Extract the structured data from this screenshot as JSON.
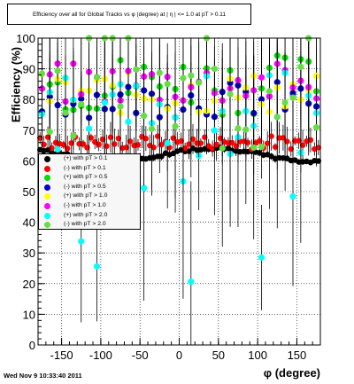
{
  "chart_data": {
    "type": "scatter",
    "title": "Efficiency over all for Global Tracks vs φ (degree) at | η | <= 1.0 at pT > 0.11",
    "xlabel": "φ (degree)",
    "ylabel": "Efficiency (%)",
    "xlim": [
      -180,
      180
    ],
    "ylim": [
      0,
      100
    ],
    "x_ticks": [
      "-150",
      "-100",
      "-50",
      "0",
      "50",
      "100",
      "150"
    ],
    "y_ticks": [
      "0",
      "10",
      "20",
      "30",
      "40",
      "50",
      "60",
      "70",
      "80",
      "90",
      "100"
    ],
    "grid": true,
    "legend_position": "left",
    "series": [
      {
        "name": "(+) with pT > 0.1",
        "color": "#000000"
      },
      {
        "name": "(-) with pT > 0.1",
        "color": "#ff0000"
      },
      {
        "name": "(+) with pT > 0.5",
        "color": "#00dd00"
      },
      {
        "name": "(-) with pT > 0.5",
        "color": "#0000cc"
      },
      {
        "name": "(+) with pT > 1.0",
        "color": "#ffff00"
      },
      {
        "name": "(-) with pT > 1.0",
        "color": "#ff00ff"
      },
      {
        "name": "(+) with pT > 2.0",
        "color": "#00ffff"
      },
      {
        "name": "(-) with pT > 2.0",
        "color": "#66dd44"
      }
    ]
  },
  "footer": "Wed Nov  9 10:33:40 2011"
}
